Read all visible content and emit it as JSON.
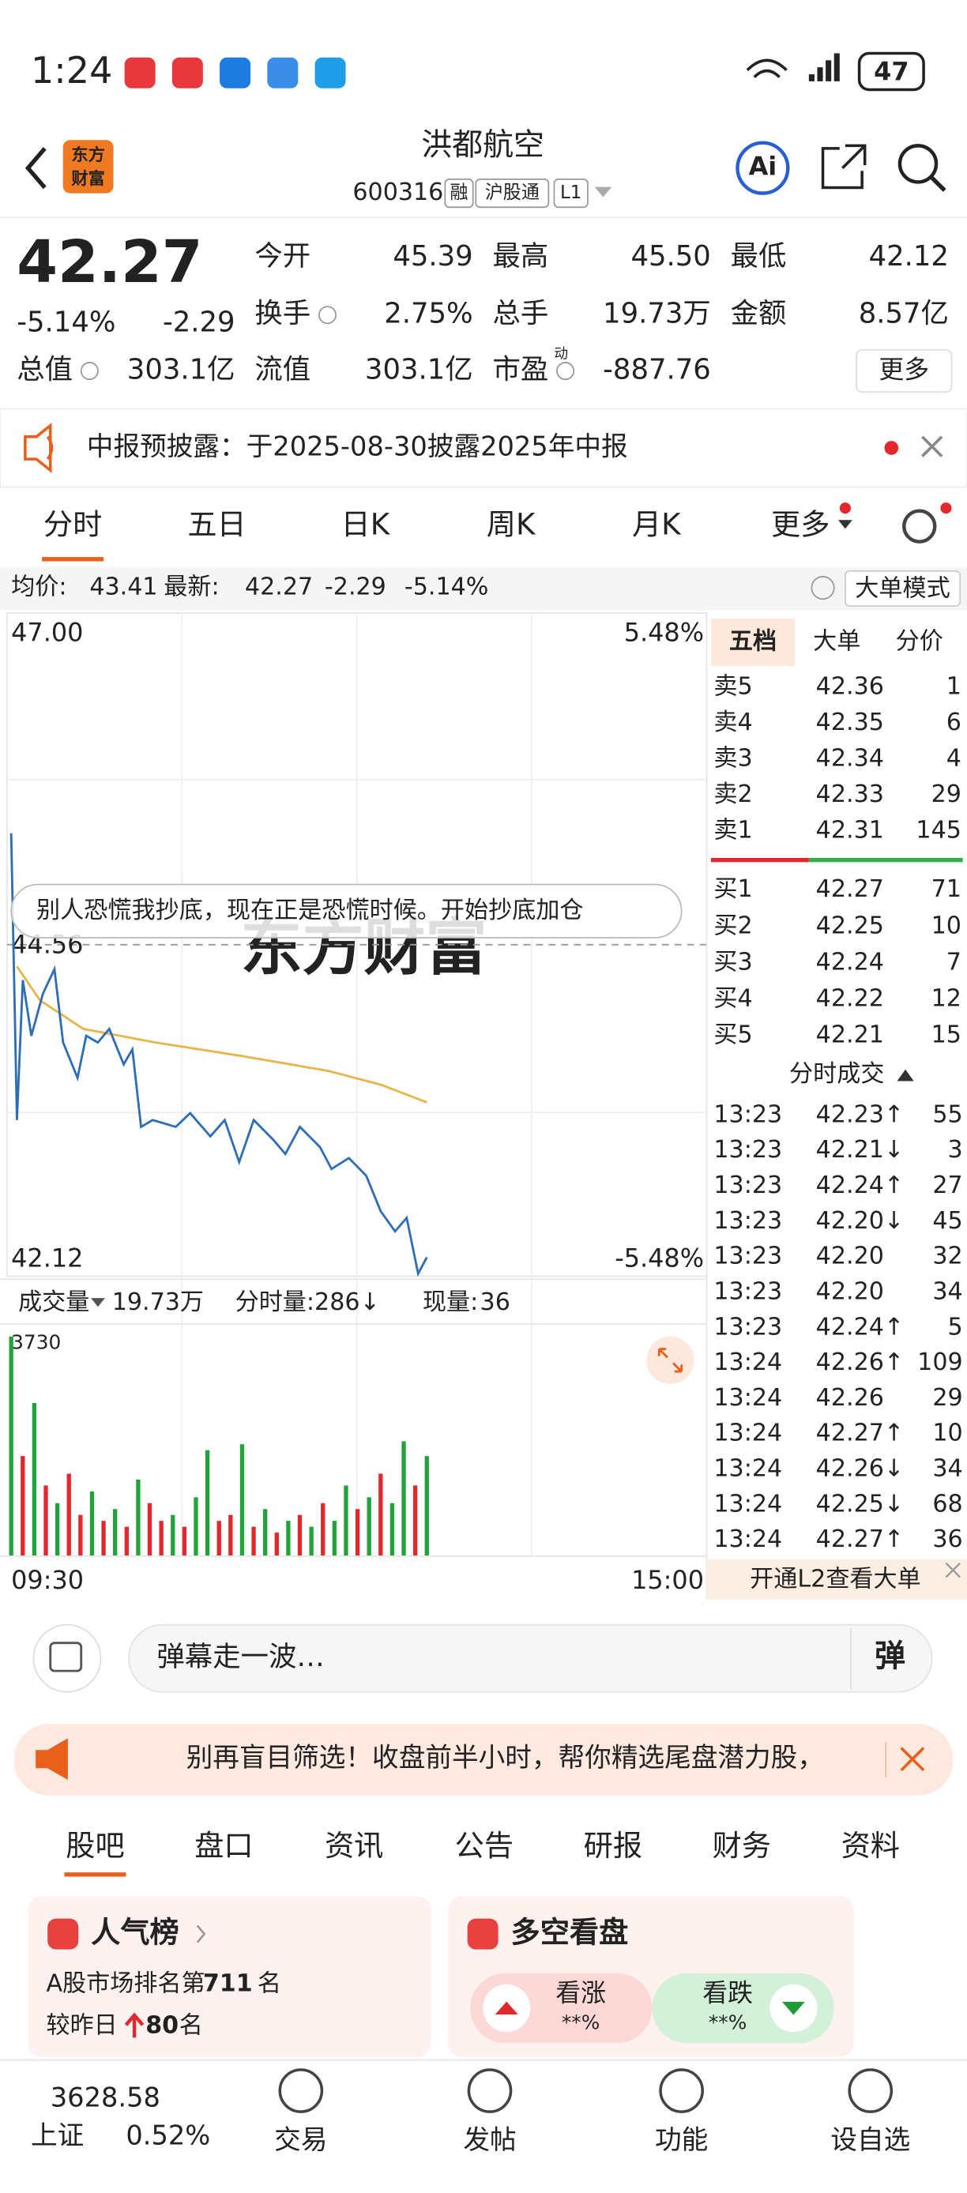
{
  "status": {
    "time": "1:24",
    "battery": "47"
  },
  "header": {
    "logo": [
      "东方",
      "财富"
    ],
    "title": "洪都航空",
    "code": "600316",
    "tags": [
      "融",
      "沪股通",
      "L1"
    ],
    "ai": "Ai"
  },
  "quote": {
    "price": "42.27",
    "change_pct": "-5.14%",
    "change": "-2.29",
    "more": "更多",
    "fields": [
      {
        "label": "今开",
        "value": "45.39",
        "color": "#e2272d"
      },
      {
        "label": "最高",
        "value": "45.50",
        "color": "#e2272d"
      },
      {
        "label": "最低",
        "value": "42.12",
        "color": "#1f9a35"
      },
      {
        "label": "换手",
        "value": "2.75%",
        "color": "#222222"
      },
      {
        "label": "总手",
        "value": "19.73万",
        "color": "#222222"
      },
      {
        "label": "金额",
        "value": "8.57亿",
        "color": "#222222"
      },
      {
        "label": "总值",
        "value": "303.1亿",
        "color": "#222222"
      },
      {
        "label": "流值",
        "value": "303.1亿",
        "color": "#222222"
      },
      {
        "label": "市盈",
        "sup": "动",
        "value": "-887.76",
        "color": "#222222"
      }
    ]
  },
  "notice": {
    "text": "中报预披露：于2025-08-30披露2025年中报"
  },
  "tabs": {
    "items": [
      "分时",
      "五日",
      "日K",
      "周K",
      "月K",
      "更多"
    ],
    "active": 0
  },
  "info": {
    "avg_label": "均价:",
    "avg": "43.41",
    "last_label": "最新:",
    "last": "42.27",
    "change": "-2.29",
    "change_pct": "-5.14%",
    "mode": "大单模式"
  },
  "intraday": {
    "ylim": [
      42.12,
      47
    ],
    "yticks": [
      {
        "value": 47,
        "label": "47.00"
      },
      44.56,
      42.12
    ],
    "top_pct": "5.48%",
    "bottom_pct": "-5.48%",
    "xlim": [
      0,
      240
    ],
    "x_labels": [
      "09:30",
      "15:00"
    ],
    "watermark": "东方财富",
    "danmaku": "别人恐慌我抄底，现在正是恐慌时候。开始抄底加仓",
    "price": {
      "color": "#2f6db5",
      "x": [
        0,
        2,
        4,
        7,
        11,
        15,
        18,
        23,
        26,
        30,
        34,
        39,
        42,
        45,
        49,
        57,
        62,
        69,
        74,
        79,
        84,
        91,
        95,
        100,
        107,
        111,
        117,
        123,
        128,
        133,
        137,
        141,
        144
      ],
      "values": [
        45.38,
        43.27,
        44.3,
        43.89,
        44.2,
        44.38,
        43.84,
        43.58,
        43.89,
        43.84,
        43.94,
        43.68,
        43.79,
        43.22,
        43.27,
        43.22,
        43.32,
        43.15,
        43.27,
        42.96,
        43.27,
        43.12,
        43.02,
        43.22,
        43.07,
        42.91,
        42.99,
        42.86,
        42.6,
        42.45,
        42.55,
        42.14,
        42.26
      ]
    },
    "avg": {
      "color": "#e8b54a",
      "x": [
        2,
        10,
        25,
        50,
        80,
        110,
        128,
        144
      ],
      "values": [
        44.4,
        44.15,
        43.94,
        43.84,
        43.74,
        43.63,
        43.53,
        43.4
      ]
    },
    "volume": {
      "label": "成交量",
      "total": "19.73万",
      "minute": "分时量:286↓",
      "now_label": "现量:",
      "now": "36",
      "ylim": [
        0,
        3730
      ],
      "x": [
        0,
        4,
        8,
        12,
        16,
        20,
        24,
        28,
        32,
        36,
        40,
        44,
        48,
        52,
        56,
        60,
        64,
        68,
        72,
        76,
        80,
        84,
        88,
        92,
        96,
        100,
        104,
        108,
        112,
        116,
        120,
        124,
        128,
        132,
        136,
        140,
        144
      ],
      "values": [
        3730,
        1700,
        2600,
        1200,
        900,
        1400,
        700,
        1100,
        600,
        800,
        500,
        1300,
        900,
        600,
        700,
        500,
        1000,
        1800,
        600,
        700,
        1900,
        500,
        800,
        400,
        600,
        700,
        500,
        900,
        600,
        1200,
        800,
        1000,
        1400,
        900,
        1950,
        1200,
        1700
      ],
      "colors": [
        "#22a33a",
        "#e2272d",
        "#22a33a",
        "#e2272d",
        "#22a33a",
        "#e2272d",
        "#e2272d",
        "#22a33a",
        "#e2272d",
        "#22a33a",
        "#e2272d",
        "#22a33a",
        "#e2272d",
        "#e2272d",
        "#22a33a",
        "#e2272d",
        "#22a33a",
        "#22a33a",
        "#e2272d",
        "#e2272d",
        "#22a33a",
        "#e2272d",
        "#22a33a",
        "#e2272d",
        "#22a33a",
        "#e2272d",
        "#22a33a",
        "#e2272d",
        "#22a33a",
        "#22a33a",
        "#e2272d",
        "#22a33a",
        "#e2272d",
        "#22a33a",
        "#22a33a",
        "#e2272d",
        "#22a33a"
      ]
    }
  },
  "book": {
    "tabs": [
      "五档",
      "大单",
      "分价"
    ],
    "sells": [
      {
        "label": "卖5",
        "price": "42.36",
        "qty": "1"
      },
      {
        "label": "卖4",
        "price": "42.35",
        "qty": "6"
      },
      {
        "label": "卖3",
        "price": "42.34",
        "qty": "4"
      },
      {
        "label": "卖2",
        "price": "42.33",
        "qty": "29"
      },
      {
        "label": "卖1",
        "price": "42.31",
        "qty": "145"
      }
    ],
    "buys": [
      {
        "label": "买1",
        "price": "42.27",
        "qty": "71"
      },
      {
        "label": "买2",
        "price": "42.25",
        "qty": "10"
      },
      {
        "label": "买3",
        "price": "42.24",
        "qty": "7"
      },
      {
        "label": "买4",
        "price": "42.22",
        "qty": "12"
      },
      {
        "label": "买5",
        "price": "42.21",
        "qty": "15"
      }
    ],
    "trades_title": "分时成交",
    "trades": [
      {
        "time": "13:23",
        "price": "42.23↑",
        "qty": "55"
      },
      {
        "time": "13:23",
        "price": "42.21↓",
        "qty": "3"
      },
      {
        "time": "13:23",
        "price": "42.24↑",
        "qty": "27"
      },
      {
        "time": "13:23",
        "price": "42.20↓",
        "qty": "45"
      },
      {
        "time": "13:23",
        "price": "42.20",
        "qty": "32"
      },
      {
        "time": "13:23",
        "price": "42.20",
        "qty": "34"
      },
      {
        "time": "13:23",
        "price": "42.24↑",
        "qty": "5"
      },
      {
        "time": "13:24",
        "price": "42.26↑",
        "qty": "109"
      },
      {
        "time": "13:24",
        "price": "42.26",
        "qty": "29"
      },
      {
        "time": "13:24",
        "price": "42.27↑",
        "qty": "10"
      },
      {
        "time": "13:24",
        "price": "42.26↓",
        "qty": "34"
      },
      {
        "time": "13:24",
        "price": "42.25↓",
        "qty": "68"
      },
      {
        "time": "13:24",
        "price": "42.27↑",
        "qty": "36"
      }
    ],
    "l2": "开通L2查看大单"
  },
  "comment": {
    "placeholder": "弹幕走一波…",
    "button": "弹"
  },
  "ad": {
    "text": "别再盲目筛选！收盘前半小时，帮你精选尾盘潜力股，"
  },
  "section_tabs": {
    "items": [
      "股吧",
      "盘口",
      "资讯",
      "公告",
      "研报",
      "财务",
      "资料"
    ],
    "active": 0
  },
  "cards": {
    "popularity": {
      "title": "人气榜",
      "rank_prefix": "A股市场排名第",
      "rank": "711",
      "rank_suffix": "名",
      "change_prefix": "较昨日",
      "change": "80",
      "change_suffix": "名"
    },
    "sentiment": {
      "title": "多空看盘",
      "bull": "看涨",
      "bull_pct": "**%",
      "bear": "看跌",
      "bear_pct": "**%"
    }
  },
  "nav": {
    "index_value": "3628.58",
    "index_name": "上证",
    "index_change": "0.52%",
    "items": [
      "交易",
      "发帖",
      "功能",
      "设自选"
    ]
  }
}
